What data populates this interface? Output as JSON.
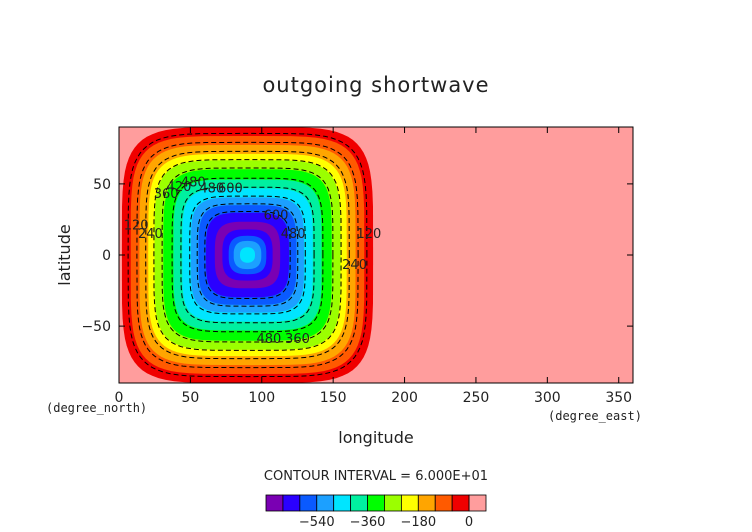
{
  "chart_data": {
    "type": "heatmap",
    "title": "outgoing shortwave",
    "xlabel": "longitude",
    "ylabel": "latitude",
    "x_unit": "(degree_east)",
    "y_unit": "(degree_north)",
    "xlim": [
      0,
      360
    ],
    "ylim": [
      -90,
      90
    ],
    "x_ticks": [
      0,
      50,
      100,
      150,
      200,
      250,
      300,
      350
    ],
    "y_ticks": [
      -50,
      0,
      50
    ],
    "contour_interval_text": "CONTOUR INTERVAL = 6.000E+01",
    "colorbar": {
      "levels": [
        -660,
        -600,
        -540,
        -480,
        -420,
        -360,
        -300,
        -240,
        -180,
        -120,
        -60,
        0
      ],
      "tick_labels": [
        "-540",
        "-360",
        "-180",
        "0"
      ],
      "colors": [
        "#7a00b3",
        "#2a00ff",
        "#0a5aff",
        "#1ca0ff",
        "#00e5ff",
        "#00f0a0",
        "#00ff00",
        "#9bff00",
        "#ffff00",
        "#ffa500",
        "#ff5a00",
        "#f00000",
        "#ff9d9d"
      ]
    },
    "contour_labels": [
      {
        "text": "120",
        "x": 12,
        "y": 18
      },
      {
        "text": "240",
        "x": 22,
        "y": 12
      },
      {
        "text": "360",
        "x": 33,
        "y": 40
      },
      {
        "text": "420",
        "x": 42,
        "y": 45
      },
      {
        "text": "480",
        "x": 52,
        "y": 48
      },
      {
        "text": "480",
        "x": 65,
        "y": 44
      },
      {
        "text": "600",
        "x": 78,
        "y": 44
      },
      {
        "text": "600",
        "x": 110,
        "y": 25
      },
      {
        "text": "480",
        "x": 122,
        "y": 12
      },
      {
        "text": "480",
        "x": 105,
        "y": -62
      },
      {
        "text": "360",
        "x": 125,
        "y": -62
      },
      {
        "text": "120",
        "x": 175,
        "y": 12
      },
      {
        "text": "240",
        "x": 165,
        "y": -10
      }
    ]
  }
}
